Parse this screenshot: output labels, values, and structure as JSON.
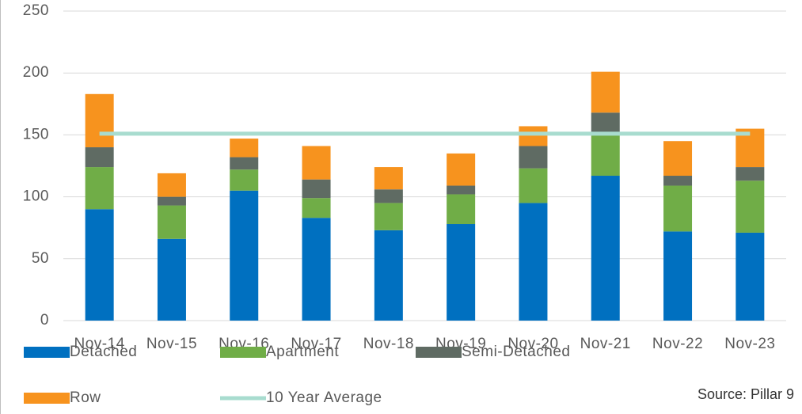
{
  "chart_data": {
    "type": "bar",
    "stacked": true,
    "categories": [
      "Nov-14",
      "Nov-15",
      "Nov-16",
      "Nov-17",
      "Nov-18",
      "Nov-19",
      "Nov-20",
      "Nov-21",
      "Nov-22",
      "Nov-23"
    ],
    "series": [
      {
        "name": "Detached",
        "color": "#0070c0",
        "values": [
          90,
          66,
          105,
          83,
          73,
          78,
          95,
          117,
          72,
          71
        ]
      },
      {
        "name": "Apartment",
        "color": "#70ad47",
        "values": [
          34,
          27,
          17,
          16,
          22,
          24,
          28,
          35,
          37,
          42
        ]
      },
      {
        "name": "Semi-Detached",
        "color": "#5f6b63",
        "values": [
          16,
          7,
          10,
          15,
          11,
          7,
          18,
          16,
          8,
          11
        ]
      },
      {
        "name": "Row",
        "color": "#f7931e",
        "values": [
          43,
          19,
          15,
          27,
          18,
          26,
          16,
          33,
          28,
          31
        ]
      },
      {
        "name": "10 Year Average",
        "type": "line",
        "color": "#a8dccf",
        "values": [
          151,
          151,
          151,
          151,
          151,
          151,
          151,
          151,
          151,
          151
        ]
      }
    ],
    "ylim": [
      0,
      250
    ],
    "yticks": [
      0,
      50,
      100,
      150,
      200,
      250
    ],
    "grid": true,
    "source": "Source: Pillar 9"
  }
}
